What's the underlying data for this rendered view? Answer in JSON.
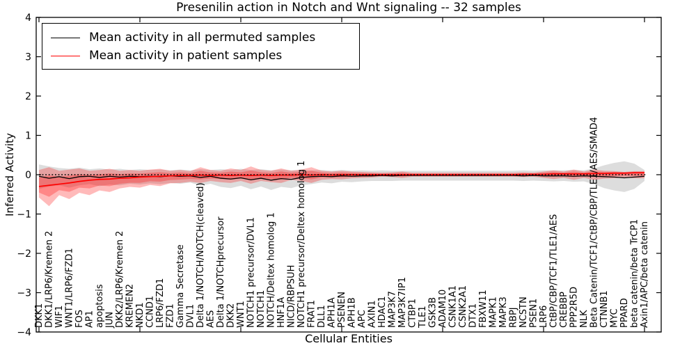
{
  "chart_data": {
    "type": "line",
    "title": "Presenilin action in Notch and Wnt signaling -- 32 samples",
    "xlabel": "Cellular Entities",
    "ylabel": "Inferred Activity",
    "ylim": [
      -4,
      4
    ],
    "y_tick_labels": [
      "4",
      "3",
      "2",
      "1",
      "0",
      "−1",
      "−2",
      "−3",
      "−4"
    ],
    "y_tick_values": [
      4,
      3,
      2,
      1,
      0,
      -1,
      -2,
      -3,
      -4
    ],
    "x_major_tick_indices": [
      0,
      10,
      20,
      30,
      40,
      50,
      60
    ],
    "grid": false,
    "legend_position": "upper left",
    "zero_reference_line": {
      "y": 0,
      "style": "dotted",
      "color": "#000000"
    },
    "categories": [
      "DKK1",
      "DKK1/LRP6/Kremen 2",
      "WIF1",
      "WNT1/LRP6/FZD1",
      "FOS",
      "AP1",
      "apoptosis",
      "JUN",
      "DKK2/LRP6/Kremen 2",
      "KREMEN2",
      "NKD1",
      "CCND1",
      "LRP6/FZD1",
      "FZD1",
      "Gamma Secretase",
      "DVL1",
      "Delta 1/NOTCH/NOTCH(cleaved)",
      "AES",
      "Delta 1/NOTCHprecursor",
      "DKK2",
      "WNT1",
      "NOTCH1 precursor/DVL1",
      "NOTCH1",
      "NOTCH/Deltex homolog 1",
      "HNF1A",
      "NICD/RBPSUH",
      "NOTCH1 precursor/Deltex homolog 1",
      "FRAT1",
      "DLL1",
      "APH1A",
      "PSENEN",
      "APH1B",
      "APC",
      "AXIN1",
      "HDAC1",
      "MAP3K7",
      "MAP3K7IP1",
      "CTBP1",
      "TLE1",
      "GSK3B",
      "ADAM10",
      "CSNK1A1",
      "CSNK2A1",
      "DTX1",
      "FBXW11",
      "MAPK1",
      "MAPK3",
      "RBPJ",
      "NCSTN",
      "PSEN1",
      "LRP6",
      "CtBP/CBP/TCF1/TLE1/AES",
      "CREBBP",
      "PPP2R5D",
      "NLK",
      "Beta Catenin/TCF1/CtBP/CBP/TLE1/AES/SMAD4",
      "CTNNB1",
      "MYC",
      "PPARD",
      "beta catenin/beta TrCP1",
      "Axin1/APC/beta catenin"
    ],
    "series": [
      {
        "name": "Mean activity in all permuted samples",
        "color": "#000000",
        "line_width": 1.3,
        "band_color": "#aaaaaa",
        "band_opacity": 0.4,
        "values": [
          -0.04,
          -0.09,
          -0.05,
          -0.1,
          -0.05,
          -0.04,
          -0.07,
          -0.04,
          -0.06,
          -0.04,
          -0.05,
          -0.04,
          -0.05,
          -0.03,
          -0.04,
          -0.03,
          -0.07,
          -0.04,
          -0.09,
          -0.11,
          -0.08,
          -0.13,
          -0.09,
          -0.14,
          -0.1,
          -0.12,
          -0.07,
          -0.05,
          -0.04,
          -0.05,
          -0.03,
          -0.04,
          -0.03,
          -0.03,
          -0.02,
          -0.03,
          -0.02,
          -0.02,
          -0.02,
          -0.02,
          -0.02,
          -0.02,
          -0.02,
          -0.02,
          -0.02,
          -0.02,
          -0.02,
          -0.02,
          -0.03,
          -0.02,
          -0.03,
          -0.03,
          -0.03,
          -0.04,
          -0.03,
          -0.04,
          -0.05,
          -0.06,
          -0.08,
          -0.06,
          -0.04
        ],
        "band_upper": [
          0.26,
          0.21,
          0.17,
          0.15,
          0.18,
          0.14,
          0.16,
          0.13,
          0.15,
          0.12,
          0.14,
          0.12,
          0.13,
          0.11,
          0.13,
          0.11,
          0.14,
          0.12,
          0.14,
          0.12,
          0.15,
          0.12,
          0.14,
          0.11,
          0.13,
          0.11,
          0.12,
          0.11,
          0.12,
          0.1,
          0.12,
          0.1,
          0.11,
          0.1,
          0.11,
          0.1,
          0.1,
          0.1,
          0.1,
          0.1,
          0.1,
          0.1,
          0.1,
          0.1,
          0.1,
          0.1,
          0.1,
          0.1,
          0.11,
          0.1,
          0.11,
          0.11,
          0.11,
          0.12,
          0.11,
          0.16,
          0.24,
          0.3,
          0.34,
          0.28,
          0.12
        ],
        "band_lower": [
          -0.36,
          -0.3,
          -0.27,
          -0.33,
          -0.27,
          -0.24,
          -0.29,
          -0.25,
          -0.27,
          -0.23,
          -0.25,
          -0.22,
          -0.24,
          -0.21,
          -0.23,
          -0.2,
          -0.28,
          -0.23,
          -0.31,
          -0.34,
          -0.28,
          -0.37,
          -0.3,
          -0.39,
          -0.31,
          -0.34,
          -0.27,
          -0.24,
          -0.2,
          -0.22,
          -0.18,
          -0.19,
          -0.17,
          -0.16,
          -0.16,
          -0.16,
          -0.15,
          -0.15,
          -0.15,
          -0.15,
          -0.15,
          -0.15,
          -0.15,
          -0.15,
          -0.15,
          -0.15,
          -0.15,
          -0.15,
          -0.16,
          -0.15,
          -0.16,
          -0.17,
          -0.16,
          -0.18,
          -0.17,
          -0.24,
          -0.34,
          -0.4,
          -0.44,
          -0.36,
          -0.16
        ]
      },
      {
        "name": "Mean activity in patient samples",
        "color": "#ff0000",
        "line_width": 1.7,
        "band_color": "#ff0000",
        "band_opacity": 0.27,
        "inner_band_scale": 0.55,
        "values": [
          -0.3,
          -0.27,
          -0.24,
          -0.21,
          -0.17,
          -0.14,
          -0.12,
          -0.11,
          -0.09,
          -0.08,
          -0.06,
          -0.05,
          -0.04,
          -0.03,
          -0.02,
          -0.02,
          -0.01,
          -0.02,
          -0.01,
          -0.02,
          -0.01,
          -0.02,
          -0.01,
          -0.02,
          -0.01,
          -0.01,
          0.0,
          -0.01,
          0.0,
          -0.01,
          0.0,
          0.0,
          0.0,
          0.0,
          0.0,
          0.0,
          0.0,
          0.0,
          0.0,
          0.0,
          0.0,
          0.0,
          0.0,
          0.0,
          0.0,
          0.0,
          0.0,
          0.0,
          0.01,
          0.01,
          0.01,
          0.02,
          0.02,
          0.02,
          0.02,
          0.03,
          0.03,
          0.04,
          0.04,
          0.05,
          0.05
        ],
        "band_upper": [
          0.12,
          0.19,
          0.1,
          0.13,
          0.16,
          0.1,
          0.12,
          0.15,
          0.1,
          0.12,
          0.1,
          0.13,
          0.15,
          0.1,
          0.12,
          0.09,
          0.19,
          0.12,
          0.1,
          0.16,
          0.12,
          0.21,
          0.12,
          0.1,
          0.16,
          0.1,
          0.13,
          0.19,
          0.1,
          0.08,
          0.1,
          0.08,
          0.07,
          0.06,
          0.05,
          0.06,
          0.08,
          0.05,
          0.05,
          0.05,
          0.05,
          0.05,
          0.05,
          0.05,
          0.05,
          0.05,
          0.05,
          0.05,
          0.06,
          0.05,
          0.08,
          0.11,
          0.08,
          0.13,
          0.08,
          0.13,
          0.1,
          0.09,
          0.07,
          0.09,
          0.09
        ],
        "band_lower": [
          -0.58,
          -0.8,
          -0.52,
          -0.62,
          -0.46,
          -0.52,
          -0.4,
          -0.44,
          -0.35,
          -0.31,
          -0.33,
          -0.26,
          -0.29,
          -0.22,
          -0.21,
          -0.18,
          -0.21,
          -0.16,
          -0.19,
          -0.21,
          -0.16,
          -0.23,
          -0.16,
          -0.19,
          -0.21,
          -0.13,
          -0.16,
          -0.21,
          -0.13,
          -0.11,
          -0.12,
          -0.09,
          -0.08,
          -0.07,
          -0.05,
          -0.06,
          -0.08,
          -0.05,
          -0.05,
          -0.05,
          -0.05,
          -0.05,
          -0.05,
          -0.05,
          -0.05,
          -0.05,
          -0.05,
          -0.05,
          -0.06,
          -0.05,
          -0.08,
          -0.11,
          -0.08,
          -0.13,
          -0.08,
          -0.13,
          -0.1,
          -0.09,
          -0.07,
          -0.09,
          -0.09
        ]
      }
    ]
  }
}
